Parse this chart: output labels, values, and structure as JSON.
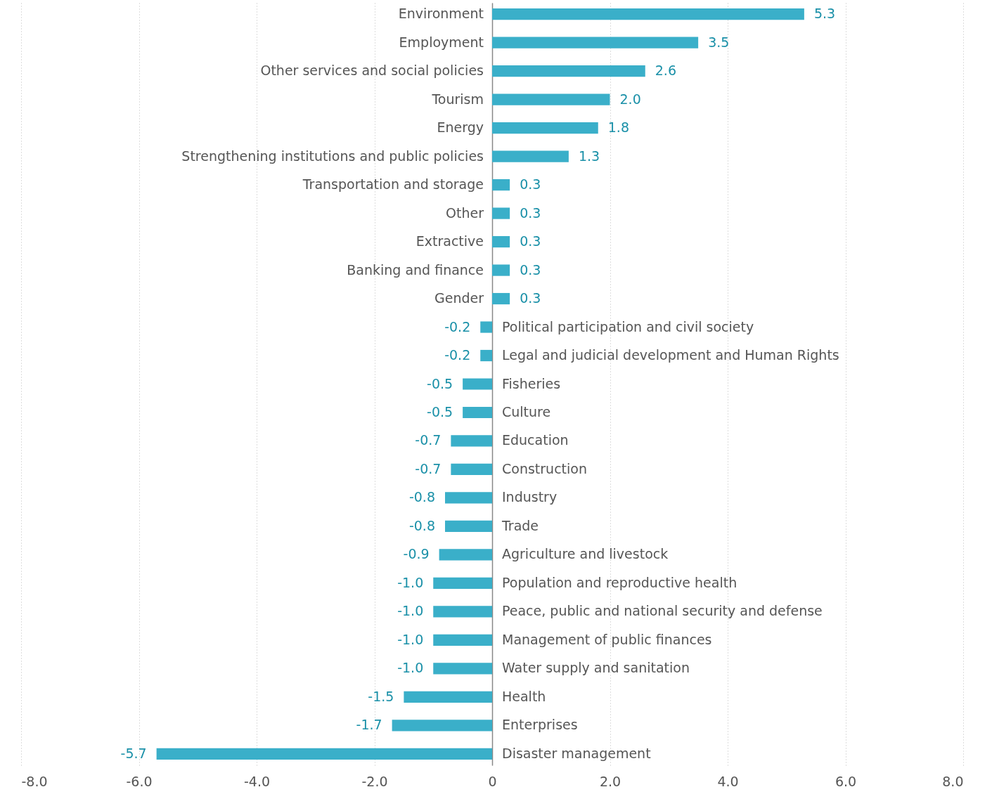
{
  "chart_data": {
    "type": "bar",
    "orientation": "horizontal",
    "categories": [
      "Environment",
      "Employment",
      "Other services and social policies",
      "Tourism",
      "Energy",
      "Strengthening institutions and public policies",
      "Transportation and storage",
      "Other",
      "Extractive",
      "Banking and finance",
      "Gender",
      "Political participation and civil society",
      "Legal and judicial development and Human Rights",
      "Fisheries",
      "Culture",
      "Education",
      "Construction",
      "Industry",
      "Trade",
      "Agriculture and livestock",
      "Population and reproductive health",
      "Peace, public and national security and defense",
      "Management of public finances",
      "Water supply and sanitation",
      "Health",
      "Enterprises",
      "Disaster management"
    ],
    "values": [
      5.3,
      3.5,
      2.6,
      2.0,
      1.8,
      1.3,
      0.3,
      0.3,
      0.3,
      0.3,
      0.3,
      -0.2,
      -0.2,
      -0.5,
      -0.5,
      -0.7,
      -0.7,
      -0.8,
      -0.8,
      -0.9,
      -1.0,
      -1.0,
      -1.0,
      -1.0,
      -1.5,
      -1.7,
      -5.7
    ],
    "value_labels": [
      "5.3",
      "3.5",
      "2.6",
      "2.0",
      "1.8",
      "1.3",
      "0.3",
      "0.3",
      "0.3",
      "0.3",
      "0.3",
      "-0.2",
      "-0.2",
      "-0.5",
      "-0.5",
      "-0.7",
      "-0.7",
      "-0.8",
      "-0.8",
      "-0.9",
      "-1.0",
      "-1.0",
      "-1.0",
      "-1.0",
      "-1.5",
      "-1.7",
      "-5.7"
    ],
    "color": "#3aafc9",
    "xlim": [
      -8,
      8
    ],
    "xticks": [
      {
        "value": -8,
        "label": "-8.0"
      },
      {
        "value": -6,
        "label": "-6.0"
      },
      {
        "value": -4,
        "label": "-4.0"
      },
      {
        "value": -2,
        "label": "-2.0"
      },
      0,
      {
        "value": 2,
        "label": "2.0"
      },
      {
        "value": 4,
        "label": "4.0"
      },
      {
        "value": 6,
        "label": "6.0"
      },
      {
        "value": 8,
        "label": "8.0"
      }
    ],
    "grid": "x"
  }
}
